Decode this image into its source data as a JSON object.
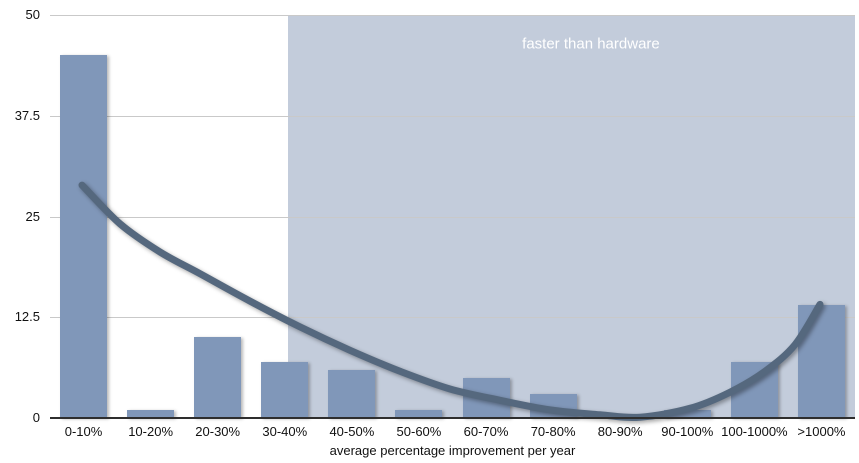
{
  "chart_data": {
    "type": "bar",
    "title": "",
    "xlabel": "average percentage improvement per year",
    "ylabel": "",
    "categories": [
      "0-10%",
      "10-20%",
      "20-30%",
      "30-40%",
      "40-50%",
      "50-60%",
      "60-70%",
      "70-80%",
      "80-90%",
      "90-100%",
      "100-1000%",
      ">1000%"
    ],
    "values": [
      45,
      1,
      10,
      7,
      6,
      1,
      5,
      3,
      0,
      1,
      7,
      14
    ],
    "ylim": [
      0,
      50
    ],
    "yticks": [
      0,
      12.5,
      25,
      37.5,
      50
    ],
    "grid": true,
    "legend": "none",
    "bar_color": "#8097b9",
    "gridline_color": "#c9c9c9",
    "axis_line_color": "#2e2e2e",
    "tick_label_color": "#111111",
    "region": {
      "label": "faster than hardware",
      "label_color": "#ffffff",
      "fill_color": "#c3ccdb",
      "x_start_frac": 0.2957,
      "covers": "from mid 30-40% bin to right edge of plot"
    },
    "trend": {
      "color": "#55687e",
      "description": "smooth U-shaped trend curve",
      "points": [
        [
          0.0398,
          28.9
        ],
        [
          0.087,
          24.1
        ],
        [
          0.1366,
          20.6
        ],
        [
          0.1863,
          17.9
        ],
        [
          0.2484,
          14.5
        ],
        [
          0.3106,
          11.3
        ],
        [
          0.3727,
          8.4
        ],
        [
          0.4348,
          5.8
        ],
        [
          0.4969,
          3.6
        ],
        [
          0.559,
          2.2
        ],
        [
          0.6211,
          1.0
        ],
        [
          0.6832,
          0.4
        ],
        [
          0.7329,
          0.1
        ],
        [
          0.795,
          1.2
        ],
        [
          0.8447,
          3.2
        ],
        [
          0.8882,
          5.8
        ],
        [
          0.9255,
          9.1
        ],
        [
          0.9565,
          14.1
        ]
      ]
    }
  }
}
